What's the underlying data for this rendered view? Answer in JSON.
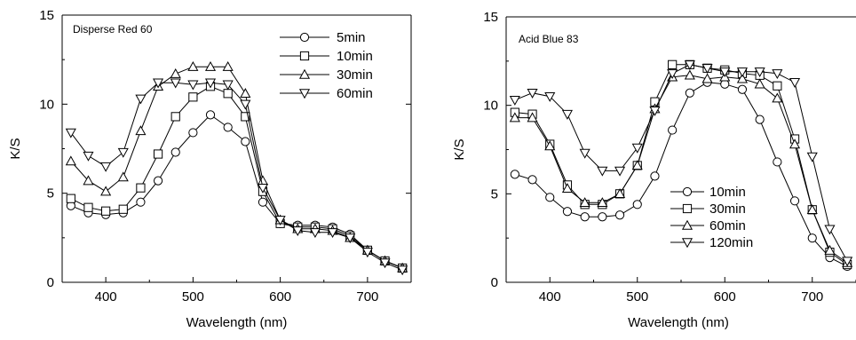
{
  "chart_data": [
    {
      "type": "line",
      "title": "",
      "annotation": "Disperse Red 60",
      "xlabel": "Wavelength (nm)",
      "ylabel": "K/S",
      "xlim": [
        350,
        750
      ],
      "ylim": [
        0,
        15
      ],
      "xticks": [
        "400",
        "500",
        "600",
        "700"
      ],
      "yticks": [
        "0",
        "5",
        "10",
        "15"
      ],
      "x": [
        360,
        380,
        400,
        420,
        440,
        460,
        480,
        500,
        520,
        540,
        560,
        580,
        600,
        620,
        640,
        660,
        680,
        700,
        720,
        740
      ],
      "legend_position": "top-right",
      "series": [
        {
          "name": "5min",
          "marker": "circle",
          "values": [
            4.3,
            3.9,
            3.8,
            3.9,
            4.5,
            5.7,
            7.3,
            8.4,
            9.4,
            8.7,
            7.9,
            4.5,
            3.3,
            3.2,
            3.2,
            3.1,
            2.7,
            1.8,
            1.2,
            0.8
          ]
        },
        {
          "name": "10min",
          "marker": "square",
          "values": [
            4.7,
            4.2,
            4.0,
            4.1,
            5.3,
            7.2,
            9.3,
            10.4,
            11.0,
            10.6,
            9.3,
            5.1,
            3.3,
            3.1,
            3.1,
            3.0,
            2.6,
            1.8,
            1.2,
            0.8
          ]
        },
        {
          "name": "30min",
          "marker": "triangle-up",
          "values": [
            6.8,
            5.7,
            5.1,
            5.9,
            8.5,
            11.0,
            11.7,
            12.1,
            12.1,
            12.1,
            10.6,
            5.7,
            3.5,
            3.0,
            3.0,
            2.9,
            2.5,
            1.8,
            1.2,
            0.8
          ]
        },
        {
          "name": "60min",
          "marker": "triangle-down",
          "values": [
            8.4,
            7.1,
            6.5,
            7.3,
            10.3,
            11.2,
            11.2,
            11.1,
            11.2,
            11.1,
            10.0,
            5.3,
            3.5,
            2.9,
            2.8,
            2.8,
            2.5,
            1.7,
            1.1,
            0.7
          ]
        }
      ]
    },
    {
      "type": "line",
      "title": "",
      "annotation": "Acid Blue 83",
      "xlabel": "Wavelength (nm)",
      "ylabel": "K/S",
      "xlim": [
        350,
        750
      ],
      "ylim": [
        0,
        15
      ],
      "xticks": [
        "400",
        "500",
        "600",
        "700"
      ],
      "yticks": [
        "0",
        "5",
        "10",
        "15"
      ],
      "x": [
        360,
        380,
        400,
        420,
        440,
        460,
        480,
        500,
        520,
        540,
        560,
        580,
        600,
        620,
        640,
        660,
        680,
        700,
        720,
        740
      ],
      "legend_position": "bottom-right",
      "series": [
        {
          "name": "10min",
          "marker": "circle",
          "values": [
            6.1,
            5.8,
            4.8,
            4.0,
            3.7,
            3.7,
            3.8,
            4.4,
            6.0,
            8.6,
            10.7,
            11.3,
            11.2,
            10.9,
            9.2,
            6.8,
            4.6,
            2.5,
            1.4,
            0.9
          ]
        },
        {
          "name": "30min",
          "marker": "square",
          "values": [
            9.6,
            9.5,
            7.8,
            5.5,
            4.4,
            4.4,
            5.0,
            6.6,
            10.2,
            12.3,
            12.3,
            12.1,
            12.0,
            11.8,
            11.7,
            11.1,
            8.1,
            4.1,
            1.7,
            1.0
          ]
        },
        {
          "name": "60min",
          "marker": "triangle-up",
          "values": [
            9.3,
            9.3,
            7.7,
            5.3,
            4.5,
            4.5,
            5.0,
            6.6,
            9.8,
            11.6,
            11.7,
            11.5,
            11.6,
            11.5,
            11.2,
            10.4,
            7.8,
            4.1,
            1.8,
            1.1
          ]
        },
        {
          "name": "120min",
          "marker": "triangle-down",
          "values": [
            10.3,
            10.7,
            10.5,
            9.5,
            7.3,
            6.3,
            6.3,
            7.6,
            9.7,
            11.8,
            12.3,
            12.1,
            11.9,
            11.9,
            11.9,
            11.8,
            11.3,
            7.1,
            3.0,
            1.2
          ]
        }
      ]
    }
  ]
}
